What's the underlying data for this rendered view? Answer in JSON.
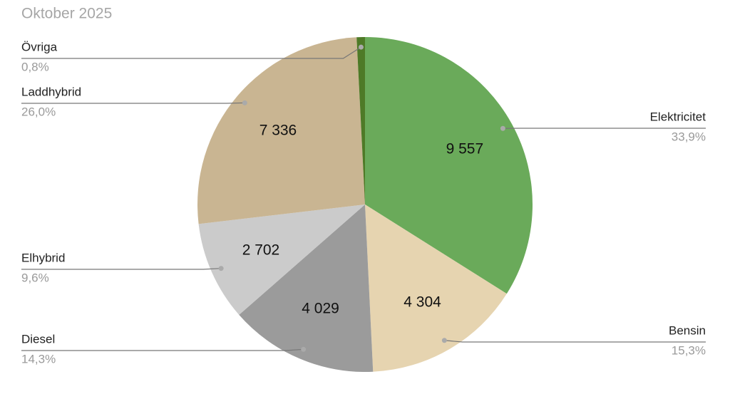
{
  "chart_data": {
    "type": "pie",
    "title": "Oktober 2025",
    "categories": [
      "Elektricitet",
      "Bensin",
      "Diesel",
      "Elhybrid",
      "Laddhybrid",
      "Övriga"
    ],
    "values": [
      9557,
      4304,
      4029,
      2702,
      7336,
      225
    ],
    "value_labels": [
      "9 557",
      "4 304",
      "4 029",
      "2 702",
      "7 336",
      null
    ],
    "percentages": [
      33.9,
      15.3,
      14.3,
      9.6,
      26.0,
      0.8
    ],
    "percentage_labels": [
      "33,9%",
      "15,3%",
      "14,3%",
      "9,6%",
      "26,0%",
      "0,8%"
    ],
    "colors": [
      "#6aaa5a",
      "#e6d4b0",
      "#9b9b9b",
      "#cbcbcb",
      "#c9b592",
      "#4e7a27"
    ]
  }
}
